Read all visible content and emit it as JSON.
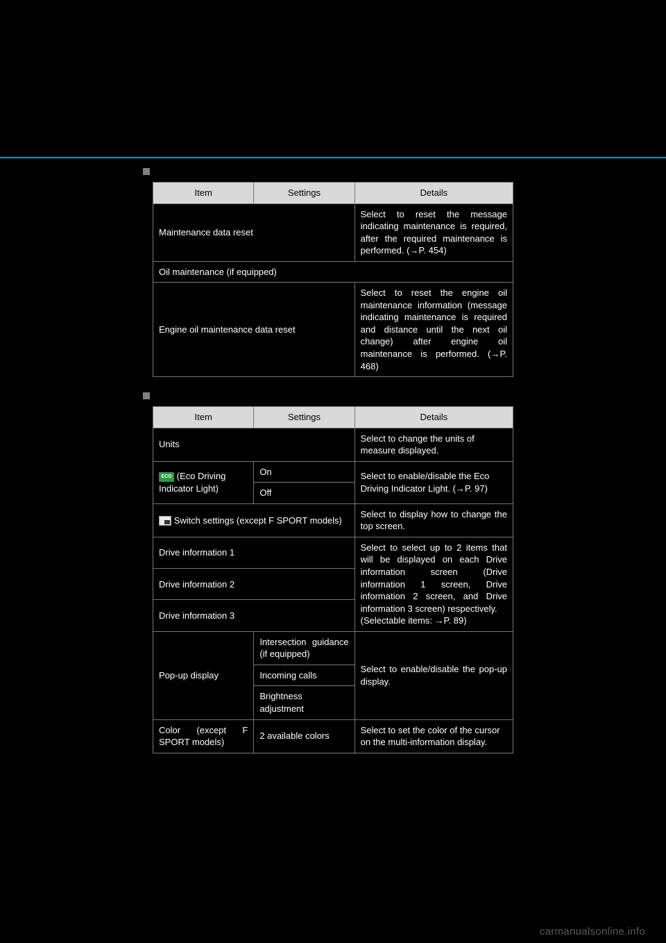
{
  "colors": {
    "page_bg": "#000000",
    "rule": "#0099d8",
    "header_bg": "#d9d9d9",
    "header_text": "#000000",
    "border": "#777777",
    "text": "#ffffff",
    "marker": "#808080",
    "eco_icon": "#2a9d3f",
    "watermark": "#5a5a5a"
  },
  "headers": {
    "item": "Item",
    "settings": "Settings",
    "details": "Details"
  },
  "table1": {
    "rows": [
      {
        "item": "Maintenance data reset",
        "details": "Select to reset the message indicating maintenance is required, after the required maintenance is performed. (→P. 454)"
      }
    ],
    "heading": "Oil maintenance (if equipped)",
    "rows2": [
      {
        "item": "Engine oil maintenance data reset",
        "details": "Select to reset the engine oil maintenance information (message indicating maintenance is required and distance until the next oil change) after engine oil maintenance is performed. (→P. 468)"
      }
    ]
  },
  "table2": {
    "units": {
      "item": "Units",
      "details": "Select to change the units of measure displayed."
    },
    "eco": {
      "item_suffix": " (Eco Driving Indicator Light)",
      "on": "On",
      "off": "Off",
      "details": "Select to enable/disable the Eco Driving Indicator Light. (→P. 97)"
    },
    "switch": {
      "item_suffix": " Switch settings (except F SPORT models)",
      "details": "Select to display how to change the top screen."
    },
    "drive": {
      "d1": "Drive information 1",
      "d2": "Drive information 2",
      "d3": "Drive information 3",
      "details": "Select to select up to 2 items that will be displayed on each Drive information screen (Drive information 1 screen, Drive information 2 screen, and Drive information 3 screen) respectively.\n(Selectable items: →P. 89)"
    },
    "popup": {
      "item": "Pop-up display",
      "s1": "Intersection guidance (if equipped)",
      "s2": "Incoming calls",
      "s3": "Brightness adjustment",
      "details": "Select to enable/disable the pop-up display."
    },
    "color": {
      "item": "Color (except F SPORT models)",
      "settings": "2 available colors",
      "details": "Select to set the color of the cursor on the multi-information display."
    }
  },
  "watermark": "carmanualsonline.info"
}
